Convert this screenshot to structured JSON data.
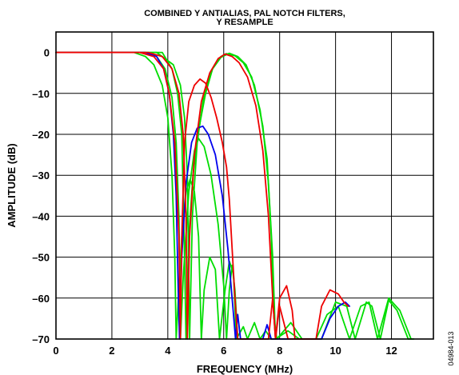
{
  "chart_data": {
    "type": "line",
    "title": "COMBINED Y ANTIALIAS, PAL NOTCH FILTERS, Y RESAMPLE",
    "title_lines": [
      "COMBINED Y ANTIALIAS, PAL NOTCH FILTERS,",
      "Y RESAMPLE"
    ],
    "xlabel": "FREQUENCY (MHz)",
    "ylabel": "AMPLITUDE (dB)",
    "xlim": [
      0,
      13.5
    ],
    "ylim": [
      -70,
      5
    ],
    "x_ticks": [
      0,
      2,
      4,
      6,
      8,
      10,
      12
    ],
    "x_tick_labels": [
      "0",
      "2",
      "4",
      "6",
      "8",
      "10",
      "12"
    ],
    "y_ticks": [
      0,
      -10,
      -20,
      -30,
      -40,
      -50,
      -60,
      -70
    ],
    "y_tick_labels": [
      "0",
      "–10",
      "–20",
      "–30",
      "–40",
      "–50",
      "–60",
      "–70"
    ],
    "x_grid": [
      2,
      4,
      6,
      8,
      10,
      12
    ],
    "y_grid": [
      -10,
      -20,
      -30,
      -40,
      -50,
      -60
    ],
    "grid": true,
    "figure_id": "04984-013",
    "series": [
      {
        "color": "#00dd00",
        "points": [
          [
            0,
            0
          ],
          [
            2,
            0
          ],
          [
            2.8,
            0
          ],
          [
            3.2,
            -1
          ],
          [
            3.5,
            -3
          ],
          [
            3.8,
            -8
          ],
          [
            4.0,
            -16
          ],
          [
            4.15,
            -30
          ],
          [
            4.25,
            -50
          ],
          [
            4.3,
            -70
          ],
          [
            4.38,
            -60
          ],
          [
            4.5,
            -45
          ],
          [
            4.65,
            -34
          ],
          [
            4.8,
            -31
          ],
          [
            4.95,
            -34
          ],
          [
            5.1,
            -45
          ],
          [
            5.2,
            -70
          ],
          [
            5.3,
            -58
          ],
          [
            5.5,
            -50
          ],
          [
            5.7,
            -53
          ],
          [
            5.85,
            -70
          ],
          [
            6.05,
            -58
          ],
          [
            6.2,
            -51
          ],
          [
            6.35,
            -54
          ],
          [
            6.45,
            -70
          ],
          [
            6.7,
            -67
          ],
          [
            6.85,
            -70
          ],
          [
            7.1,
            -66
          ],
          [
            7.3,
            -70
          ],
          [
            7.5,
            -68
          ],
          [
            7.7,
            -70
          ]
        ]
      },
      {
        "color": "#00dd00",
        "points": [
          [
            0,
            0
          ],
          [
            3.2,
            0
          ],
          [
            3.6,
            -1
          ],
          [
            3.9,
            -4
          ],
          [
            4.15,
            -11
          ],
          [
            4.3,
            -22
          ],
          [
            4.4,
            -40
          ],
          [
            4.45,
            -70
          ],
          [
            4.55,
            -55
          ],
          [
            4.75,
            -34
          ],
          [
            4.95,
            -24
          ],
          [
            5.1,
            -21
          ],
          [
            5.3,
            -23
          ],
          [
            5.55,
            -30
          ],
          [
            5.8,
            -42
          ],
          [
            6.0,
            -57
          ],
          [
            6.1,
            -70
          ],
          [
            6.2,
            -58
          ],
          [
            6.3,
            -52
          ],
          [
            6.4,
            -58
          ],
          [
            6.5,
            -70
          ]
        ]
      },
      {
        "color": "#00dd00",
        "points": [
          [
            0,
            0
          ],
          [
            3.8,
            0
          ],
          [
            4.15,
            -4
          ],
          [
            4.35,
            -10
          ],
          [
            4.5,
            -20
          ],
          [
            4.6,
            -50
          ],
          [
            4.65,
            -70
          ],
          [
            4.75,
            -45
          ],
          [
            4.9,
            -30
          ],
          [
            5.1,
            -19
          ],
          [
            5.35,
            -10
          ],
          [
            5.6,
            -4
          ],
          [
            5.9,
            -1.2
          ],
          [
            6.2,
            -0.2
          ],
          [
            6.5,
            -1
          ],
          [
            6.8,
            -3
          ],
          [
            7.1,
            -8
          ],
          [
            7.4,
            -18
          ],
          [
            7.6,
            -32
          ],
          [
            7.75,
            -50
          ],
          [
            7.85,
            -70
          ],
          [
            8.3,
            -68
          ],
          [
            8.7,
            -70
          ],
          [
            9.3,
            -70
          ],
          [
            9.7,
            -64
          ],
          [
            10.1,
            -62
          ],
          [
            10.5,
            -70
          ],
          [
            10.9,
            -62
          ],
          [
            11.2,
            -61
          ],
          [
            11.5,
            -70
          ],
          [
            11.9,
            -60
          ],
          [
            12.3,
            -63
          ],
          [
            12.7,
            -70
          ]
        ]
      },
      {
        "color": "#00dd00",
        "points": [
          [
            0,
            0
          ],
          [
            3.6,
            0
          ],
          [
            4.2,
            -3
          ],
          [
            4.45,
            -8
          ],
          [
            4.6,
            -16
          ],
          [
            4.7,
            -30
          ],
          [
            4.78,
            -70
          ],
          [
            4.88,
            -40
          ],
          [
            5.05,
            -22
          ],
          [
            5.3,
            -10
          ],
          [
            5.6,
            -4
          ],
          [
            5.9,
            -1
          ],
          [
            6.1,
            -0.3
          ],
          [
            6.4,
            -0.8
          ],
          [
            6.7,
            -2.5
          ],
          [
            7.0,
            -6
          ],
          [
            7.3,
            -14
          ],
          [
            7.55,
            -26
          ],
          [
            7.7,
            -45
          ],
          [
            7.8,
            -65
          ],
          [
            7.9,
            -70
          ],
          [
            8.4,
            -66
          ],
          [
            8.8,
            -70
          ],
          [
            9.5,
            -70
          ],
          [
            10.0,
            -61
          ],
          [
            10.4,
            -62
          ],
          [
            10.7,
            -70
          ],
          [
            11.1,
            -61
          ],
          [
            11.3,
            -62
          ],
          [
            11.6,
            -70
          ],
          [
            11.9,
            -60.5
          ],
          [
            12.2,
            -63
          ],
          [
            12.6,
            -70
          ],
          [
            12.8,
            -70
          ]
        ]
      },
      {
        "color": "#0000ee",
        "points": [
          [
            0,
            0
          ],
          [
            3.2,
            0
          ],
          [
            3.6,
            -1
          ],
          [
            3.85,
            -4
          ],
          [
            4.05,
            -10
          ],
          [
            4.2,
            -20
          ],
          [
            4.3,
            -35
          ],
          [
            4.38,
            -60
          ],
          [
            4.42,
            -70
          ],
          [
            4.5,
            -50
          ],
          [
            4.65,
            -32
          ],
          [
            4.85,
            -22
          ],
          [
            5.05,
            -18.5
          ],
          [
            5.25,
            -18
          ],
          [
            5.45,
            -20
          ],
          [
            5.7,
            -25
          ],
          [
            5.95,
            -35
          ],
          [
            6.15,
            -48
          ],
          [
            6.35,
            -64
          ],
          [
            6.42,
            -70
          ],
          [
            6.5,
            -64
          ],
          [
            6.6,
            -70
          ],
          [
            7.4,
            -70
          ],
          [
            7.55,
            -66.5
          ],
          [
            7.7,
            -70
          ],
          [
            9.5,
            -70
          ],
          [
            9.8,
            -65
          ],
          [
            10.1,
            -62
          ],
          [
            10.35,
            -61
          ],
          [
            10.5,
            -62
          ]
        ]
      },
      {
        "color": "#ee0000",
        "points": [
          [
            0,
            0
          ],
          [
            3.0,
            0
          ],
          [
            3.5,
            -1
          ],
          [
            3.85,
            -4
          ],
          [
            4.05,
            -10
          ],
          [
            4.25,
            -22
          ],
          [
            4.4,
            -45
          ],
          [
            4.45,
            -70
          ],
          [
            4.5,
            -45
          ],
          [
            4.6,
            -22
          ],
          [
            4.75,
            -12
          ],
          [
            4.95,
            -8
          ],
          [
            5.15,
            -6.5
          ],
          [
            5.35,
            -7.5
          ],
          [
            5.55,
            -11
          ],
          [
            5.75,
            -16
          ],
          [
            5.95,
            -22
          ],
          [
            6.1,
            -28
          ],
          [
            6.2,
            -36
          ],
          [
            6.3,
            -48
          ],
          [
            6.4,
            -60
          ],
          [
            6.5,
            -70
          ],
          [
            7.6,
            -70
          ],
          [
            7.75,
            -60
          ],
          [
            7.85,
            -70
          ],
          [
            8.0,
            -60
          ],
          [
            8.25,
            -57
          ],
          [
            8.45,
            -63
          ],
          [
            8.55,
            -70
          ],
          [
            9.3,
            -70
          ],
          [
            9.5,
            -62
          ],
          [
            9.8,
            -58
          ],
          [
            10.1,
            -59
          ],
          [
            10.3,
            -61
          ],
          [
            10.45,
            -62
          ]
        ]
      },
      {
        "color": "#ee0000",
        "points": [
          [
            0,
            0
          ],
          [
            3.3,
            0
          ],
          [
            3.8,
            -1
          ],
          [
            4.15,
            -4
          ],
          [
            4.4,
            -10
          ],
          [
            4.55,
            -20
          ],
          [
            4.65,
            -40
          ],
          [
            4.7,
            -70
          ],
          [
            4.78,
            -45
          ],
          [
            4.95,
            -25
          ],
          [
            5.2,
            -12
          ],
          [
            5.5,
            -5
          ],
          [
            5.8,
            -1.5
          ],
          [
            6.05,
            -0.4
          ],
          [
            6.3,
            -1
          ],
          [
            6.55,
            -2.5
          ],
          [
            6.85,
            -6
          ],
          [
            7.15,
            -13
          ],
          [
            7.4,
            -24
          ],
          [
            7.6,
            -40
          ],
          [
            7.75,
            -60
          ],
          [
            7.85,
            -70
          ],
          [
            8.0,
            -62
          ],
          [
            8.3,
            -70
          ],
          [
            9.4,
            -70
          ]
        ]
      }
    ]
  }
}
